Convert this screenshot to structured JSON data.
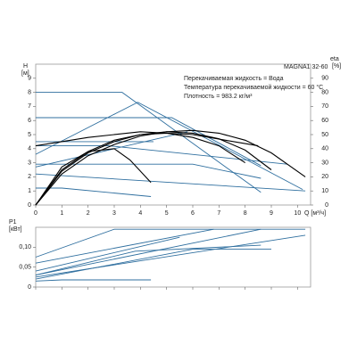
{
  "chart_data": [
    {
      "type": "line",
      "title": "MAGNA1 32-60",
      "annotations": [
        "Перекачиваемая жидкость = Вода",
        "Температура перекачиваемой жидкости = 60 °C",
        "Плотность = 983.2 кг/м³"
      ],
      "ylabel": "H",
      "yunit": "[м]",
      "y2label": "eta",
      "y2unit": "[%]",
      "xlabel": "Q [м³/ч]",
      "xlim": [
        0,
        10.5
      ],
      "xticks": [
        0,
        1,
        2,
        3,
        4,
        5,
        6,
        7,
        8,
        9,
        10
      ],
      "ylim": [
        0,
        10
      ],
      "yticks": [
        0,
        1,
        2,
        3,
        4,
        5,
        6,
        7,
        8,
        9
      ],
      "y2lim": [
        0,
        100
      ],
      "y2ticks": [
        0,
        10,
        20,
        30,
        40,
        50,
        60,
        70,
        80,
        90
      ],
      "series": [
        {
          "color": "#2f6f9f",
          "x": [
            0,
            3.3,
            8.6
          ],
          "values": [
            8,
            8,
            0.9
          ]
        },
        {
          "color": "#2f6f9f",
          "x": [
            0,
            5.2,
            8.6
          ],
          "values": [
            6.2,
            6.2,
            2.8
          ]
        },
        {
          "color": "#2f6f9f",
          "x": [
            0,
            3.9,
            10.2
          ],
          "values": [
            3.6,
            7.3,
            1.1
          ]
        },
        {
          "color": "#2f6f9f",
          "x": [
            0,
            4.5
          ],
          "values": [
            4.5,
            4.5
          ]
        },
        {
          "color": "#2f6f9f",
          "x": [
            0,
            2.8,
            9.6
          ],
          "values": [
            4.2,
            4.2,
            2.9
          ]
        },
        {
          "color": "#2f6f9f",
          "x": [
            0,
            5.8
          ],
          "values": [
            2.7,
            5.2
          ]
        },
        {
          "color": "#2f6f9f",
          "x": [
            0,
            10.3
          ],
          "values": [
            2.2,
            1.0
          ]
        },
        {
          "color": "#2f6f9f",
          "x": [
            0,
            6,
            8.6
          ],
          "values": [
            2.9,
            2.9,
            1.9
          ]
        },
        {
          "color": "#2f6f9f",
          "x": [
            0,
            1,
            4.4
          ],
          "values": [
            1.2,
            1.2,
            0.6
          ]
        },
        {
          "color": "#000000",
          "x": [
            0,
            2,
            4,
            6,
            8.5
          ],
          "values": [
            4.2,
            4.8,
            5.2,
            5.0,
            4.2
          ]
        },
        {
          "color": "#000000",
          "axis": "y2",
          "x": [
            0,
            1,
            2,
            3,
            4,
            5,
            6,
            7,
            8,
            9,
            10.3
          ],
          "values": [
            0,
            22,
            35,
            43,
            49,
            52,
            53,
            51,
            46,
            37,
            20
          ]
        },
        {
          "color": "#000000",
          "axis": "y2",
          "x": [
            0,
            1,
            2,
            3,
            4,
            5,
            6,
            7,
            8,
            9
          ],
          "values": [
            0,
            24,
            37,
            45,
            50,
            52,
            51,
            47,
            39,
            25
          ]
        },
        {
          "color": "#000000",
          "axis": "y2",
          "x": [
            0,
            1,
            2,
            3,
            4,
            5,
            6,
            7,
            8
          ],
          "values": [
            0,
            25,
            38,
            46,
            50,
            51,
            48,
            42,
            30
          ]
        },
        {
          "color": "#000000",
          "axis": "y2",
          "x": [
            0,
            1,
            2,
            3,
            3.6,
            4.4
          ],
          "values": [
            0,
            27,
            38,
            40,
            32,
            16
          ]
        }
      ]
    },
    {
      "type": "line",
      "ylabel": "P1",
      "yunit": "[кВт]",
      "xlim": [
        0,
        10.5
      ],
      "xticks": [
        0,
        1,
        2,
        3,
        4,
        5,
        6,
        7,
        8,
        9,
        10
      ],
      "ylim": [
        0,
        0.15
      ],
      "yticks": [
        0,
        {
          "value": 0.05,
          "label": "0,05"
        },
        {
          "value": 0.1,
          "label": "0,10"
        }
      ],
      "series": [
        {
          "color": "#2f6f9f",
          "x": [
            0,
            3.0,
            10.3
          ],
          "values": [
            0.075,
            0.145,
            0.145
          ]
        },
        {
          "color": "#2f6f9f",
          "x": [
            0,
            6.8
          ],
          "values": [
            0.06,
            0.145
          ]
        },
        {
          "color": "#2f6f9f",
          "x": [
            0,
            5.5
          ],
          "values": [
            0.04,
            0.125
          ]
        },
        {
          "color": "#2f6f9f",
          "x": [
            0,
            8.6
          ],
          "values": [
            0.03,
            0.145
          ]
        },
        {
          "color": "#2f6f9f",
          "x": [
            0,
            10.3
          ],
          "values": [
            0.025,
            0.13
          ]
        },
        {
          "color": "#2f6f9f",
          "x": [
            0,
            6,
            9
          ],
          "values": [
            0.02,
            0.095,
            0.095
          ]
        },
        {
          "color": "#2f6f9f",
          "x": [
            0,
            3.8,
            8.6
          ],
          "values": [
            0.03,
            0.09,
            0.105
          ]
        },
        {
          "color": "#2f6f9f",
          "x": [
            0,
            1,
            4.4
          ],
          "values": [
            0.015,
            0.018,
            0.018
          ]
        }
      ]
    }
  ]
}
